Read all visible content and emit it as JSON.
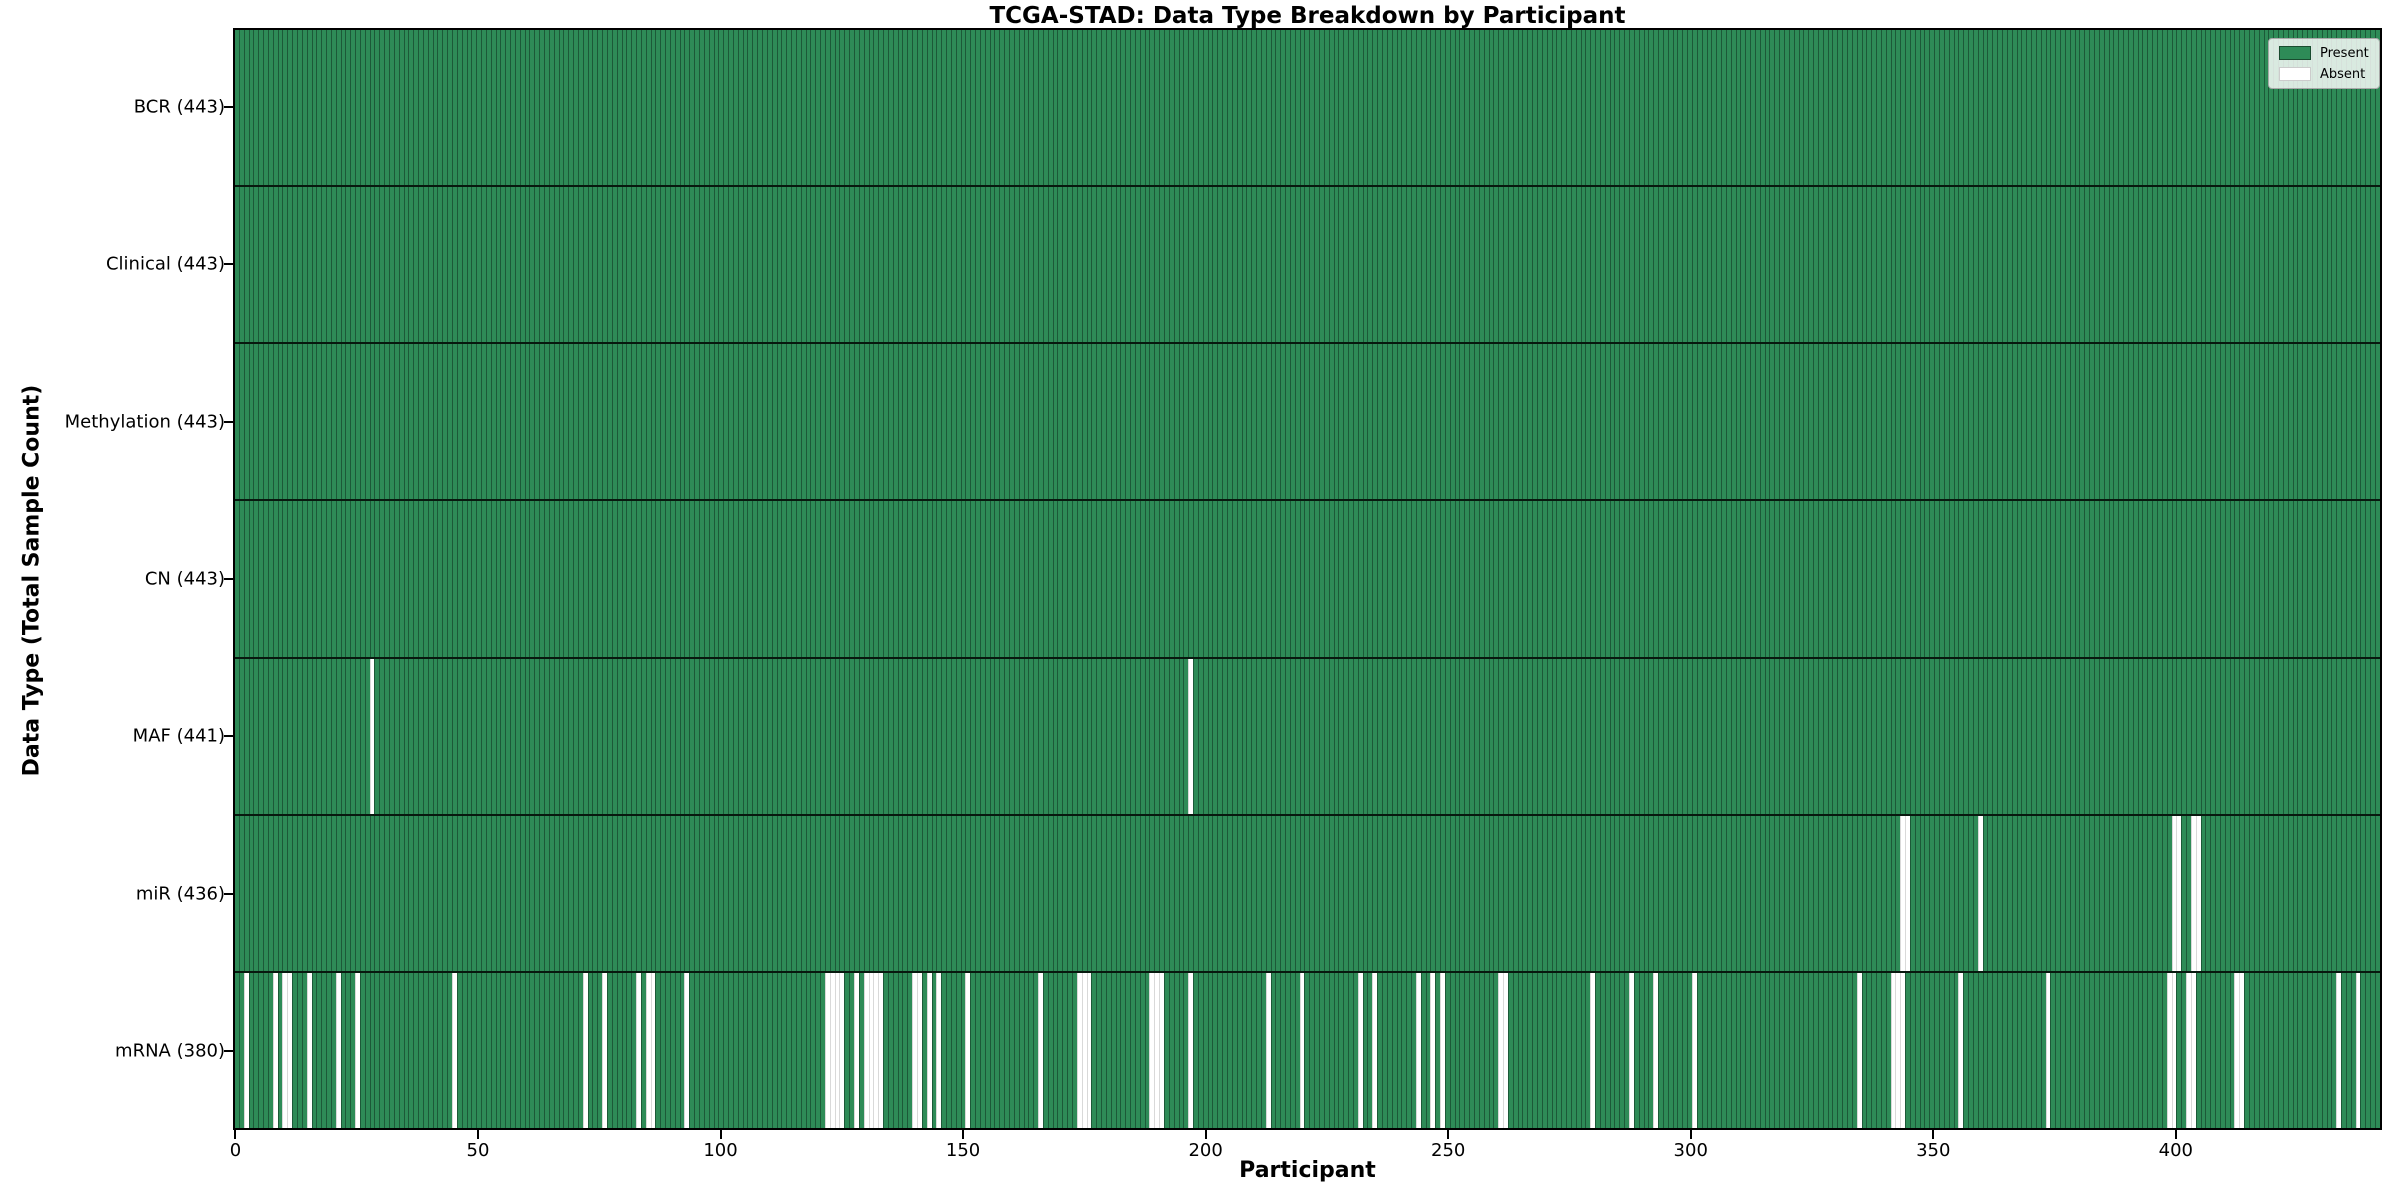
{
  "title": "TCGA-STAD: Data Type Breakdown by Participant",
  "xlabel": "Participant",
  "ylabel": "Data Type (Total Sample Count)",
  "colors": {
    "present": "#2e8b57",
    "absent": "#ffffff",
    "bar_edge": "rgba(10,40,25,0.50)",
    "row_divider": "#1a1a1a",
    "axis": "#000000",
    "legend_border": "#a8a8a8"
  },
  "legend": {
    "position": "upper right",
    "entries": [
      {
        "label": "Present",
        "color": "#2e8b57"
      },
      {
        "label": "Absent",
        "color": "#ffffff"
      }
    ]
  },
  "chart_data": {
    "type": "heatmap",
    "n_participants": 443,
    "xlim": [
      0,
      443
    ],
    "x_ticks": [
      0,
      50,
      100,
      150,
      200,
      250,
      300,
      350,
      400
    ],
    "grid": false,
    "value_encoding": {
      "present": 1,
      "absent": 0
    },
    "rows": [
      {
        "data_type": "BCR",
        "label": "BCR (443)",
        "total": 443,
        "absent_participants": []
      },
      {
        "data_type": "Clinical",
        "label": "Clinical (443)",
        "total": 443,
        "absent_participants": []
      },
      {
        "data_type": "Methylation",
        "label": "Methylation (443)",
        "total": 443,
        "absent_participants": []
      },
      {
        "data_type": "CN",
        "label": "CN (443)",
        "total": 443,
        "absent_participants": []
      },
      {
        "data_type": "MAF",
        "label": "MAF (441)",
        "total": 441,
        "absent_participants": [
          28,
          197
        ]
      },
      {
        "data_type": "miR",
        "label": "miR (436)",
        "total": 436,
        "absent_participants": [
          344,
          345,
          360,
          400,
          401,
          404,
          405
        ]
      },
      {
        "data_type": "mRNA",
        "label": "mRNA (380)",
        "total": 380,
        "absent_participants": [
          2,
          8,
          10,
          11,
          15,
          21,
          25,
          45,
          72,
          76,
          83,
          85,
          86,
          93,
          122,
          123,
          124,
          125,
          128,
          130,
          131,
          132,
          133,
          140,
          141,
          143,
          145,
          151,
          166,
          174,
          175,
          176,
          189,
          190,
          191,
          197,
          213,
          220,
          232,
          235,
          244,
          247,
          249,
          261,
          262,
          280,
          288,
          293,
          301,
          335,
          342,
          343,
          344,
          356,
          374,
          399,
          400,
          403,
          404,
          413,
          414,
          434,
          438
        ]
      }
    ]
  }
}
